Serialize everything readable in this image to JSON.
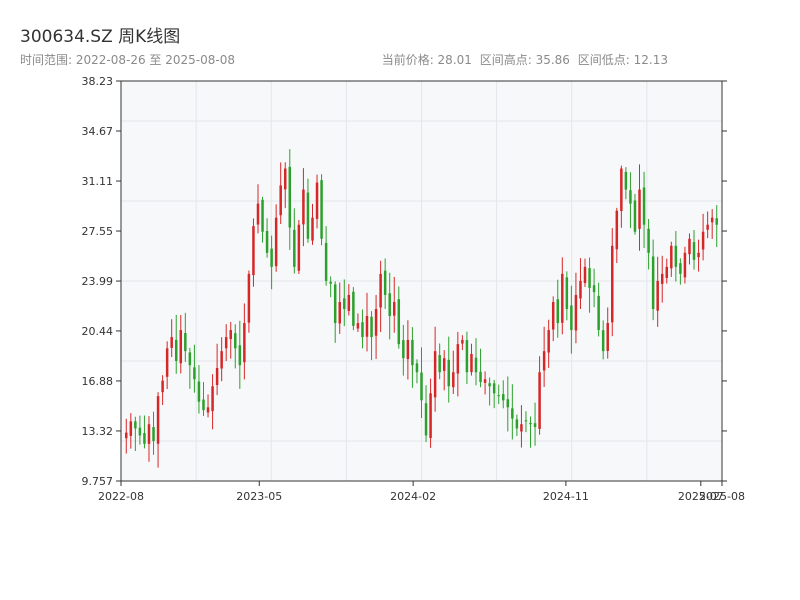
{
  "header": {
    "title": "300634.SZ 周K线图",
    "range_text": "时间范围: 2022-08-26 至 2025-08-08",
    "current_price_text": "当前价格: 28.01",
    "high_text": "区间高点: 35.86",
    "low_text": "区间低点: 12.13"
  },
  "colors": {
    "up": "#d62728",
    "down": "#2ca02c",
    "plot_bg": "#f7f8fa",
    "grid": "#e3e6ea",
    "axis": "#333333"
  },
  "chart_data": {
    "type": "candlestick",
    "title": "300634.SZ 周K线图",
    "frequency": "weekly",
    "xlabel": "",
    "ylabel": "",
    "x_range": [
      "2022-08-26",
      "2025-08-08"
    ],
    "ylim": [
      9.757,
      38.23
    ],
    "y_ticks": [
      9.757,
      13.32,
      16.88,
      20.44,
      23.99,
      27.55,
      31.11,
      34.67,
      38.23
    ],
    "x_ticks": [
      {
        "label": "2022-08",
        "date": "2022-08-26"
      },
      {
        "label": "2023-05",
        "date": "2023-05-01"
      },
      {
        "label": "2024-02",
        "date": "2024-02-01"
      },
      {
        "label": "2024-11",
        "date": "2024-11-01"
      },
      {
        "label": "2025-07",
        "date": "2025-07-01"
      },
      {
        "label": "2025-08",
        "date": "2025-08-08"
      }
    ],
    "grid": true,
    "current_price": 28.01,
    "range_high": 35.86,
    "range_low": 12.13,
    "close_series": [
      13.2,
      14.0,
      13.5,
      13.0,
      12.4,
      13.8,
      12.6,
      15.8,
      16.9,
      19.2,
      20.0,
      18.3,
      20.5,
      19.0,
      18.0,
      17.0,
      15.4,
      14.8,
      15.0,
      16.5,
      17.8,
      19.0,
      20.0,
      20.5,
      19.2,
      18.0,
      21.0,
      24.5,
      27.9,
      29.5,
      27.5,
      26.0,
      25.0,
      28.5,
      30.8,
      32.0,
      27.8,
      25.0,
      28.0,
      30.5,
      27.0,
      28.5,
      31.0,
      27.0,
      24.0,
      23.8,
      21.0,
      22.5,
      22.0,
      23.0,
      20.8,
      21.0,
      20.0,
      21.5,
      20.0,
      22.0,
      24.5,
      23.0,
      21.5,
      22.5,
      19.5,
      18.5,
      19.8,
      18.0,
      17.5,
      15.5,
      13.0,
      16.0,
      19.0,
      17.5,
      18.5,
      16.5,
      17.5,
      19.5,
      19.8,
      17.5,
      18.8,
      17.5,
      16.8,
      17.0,
      16.5,
      16.0,
      15.8,
      15.5,
      15.0,
      14.2,
      13.5,
      13.8,
      14.0,
      13.8,
      13.6,
      17.5,
      19.0,
      20.5,
      22.5,
      21.0,
      24.5,
      22.0,
      20.5,
      23.0,
      24.0,
      25.0,
      23.5,
      23.2,
      20.5,
      19.0,
      21.0,
      26.5,
      29.0,
      32.0,
      30.5,
      29.5,
      27.5,
      30.5,
      28.0,
      26.0,
      22.0,
      24.0,
      24.5,
      25.0,
      26.5,
      25.0,
      24.5,
      26.0,
      27.0,
      25.5,
      26.0,
      27.5,
      28.0,
      28.5,
      28.0
    ],
    "series": [
      {
        "name": "",
        "color_up": "#d62728",
        "color_down": "#2ca02c"
      }
    ]
  }
}
